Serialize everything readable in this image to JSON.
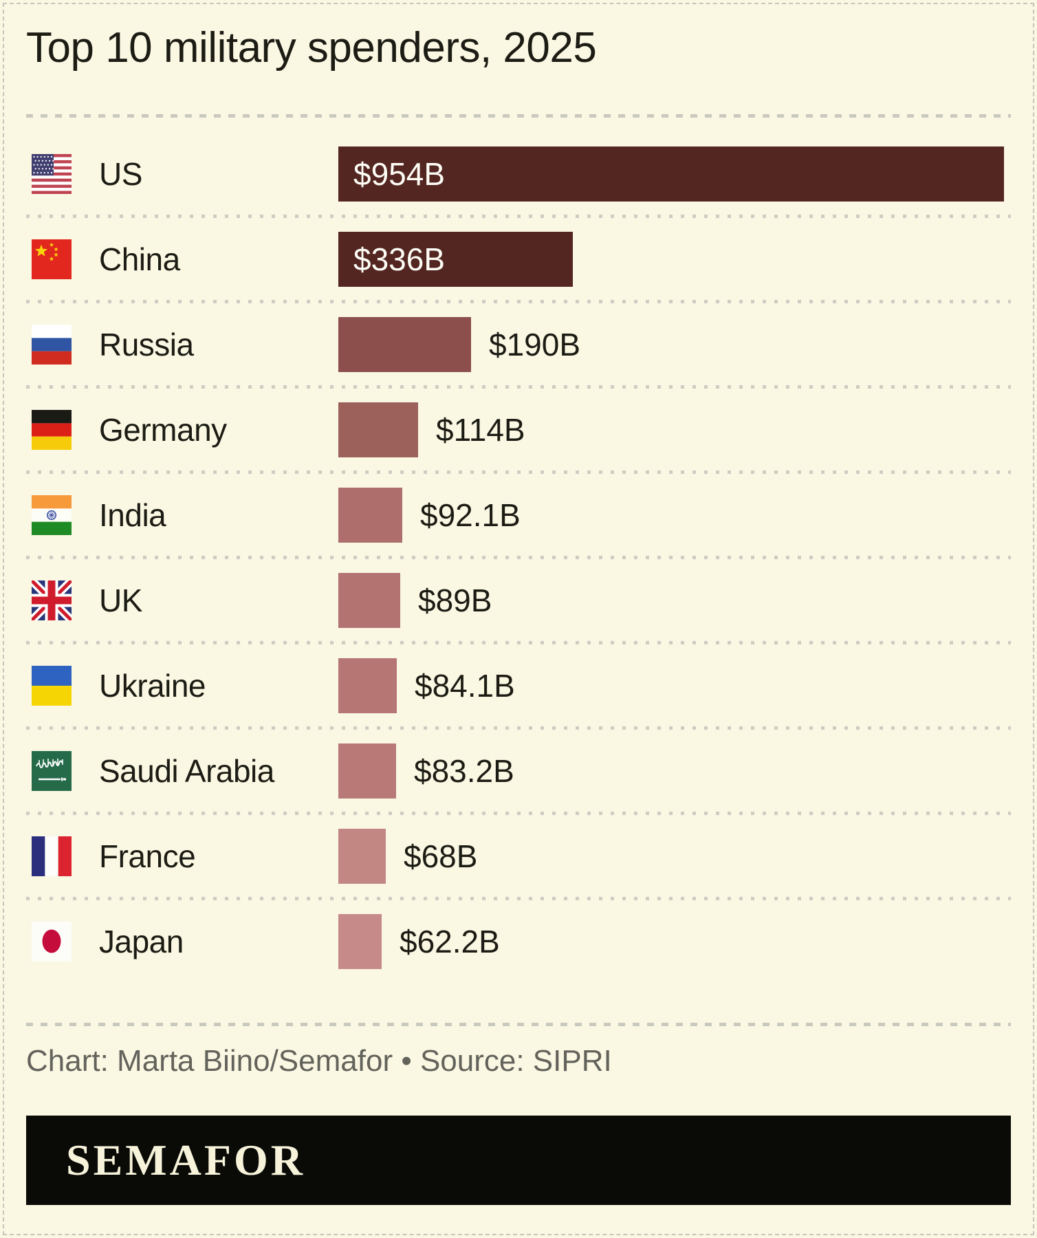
{
  "title": "Top 10 military spenders, 2025",
  "footer": {
    "credit_line": "Chart: Marta Biino/Semafor • Source: SIPRI",
    "logo_text": "SEMAFOR"
  },
  "colors": {
    "background": "#faf7e3",
    "text": "#1c1c14",
    "credit_text": "#63635b",
    "separator": "#cdcdc2",
    "logo_bar": "#0a0a07",
    "logo_text_color": "#f7f3da",
    "value_inside_text": "#fdfdf6",
    "bar_dark": "#542621",
    "bar_light": "#c68b88"
  },
  "rows": [
    {
      "country": "US",
      "flag": "us",
      "value": 954,
      "value_label": "$954B",
      "bar_color": "#542621",
      "label_inside": true
    },
    {
      "country": "China",
      "flag": "china",
      "value": 336,
      "value_label": "$336B",
      "bar_color": "#542621",
      "label_inside": true
    },
    {
      "country": "Russia",
      "flag": "russia",
      "value": 190,
      "value_label": "$190B",
      "bar_color": "#8d4f4b",
      "label_inside": false
    },
    {
      "country": "Germany",
      "flag": "germany",
      "value": 114,
      "value_label": "$114B",
      "bar_color": "#9d615c",
      "label_inside": false
    },
    {
      "country": "India",
      "flag": "india",
      "value": 92.1,
      "value_label": "$92.1B",
      "bar_color": "#ae6f6c",
      "label_inside": false
    },
    {
      "country": "UK",
      "flag": "uk",
      "value": 89,
      "value_label": "$89B",
      "bar_color": "#b27371",
      "label_inside": false
    },
    {
      "country": "Ukraine",
      "flag": "ukraine",
      "value": 84.1,
      "value_label": "$84.1B",
      "bar_color": "#b67774",
      "label_inside": false
    },
    {
      "country": "Saudi Arabia",
      "flag": "saudi",
      "value": 83.2,
      "value_label": "$83.2B",
      "bar_color": "#b97a77",
      "label_inside": false
    },
    {
      "country": "France",
      "flag": "france",
      "value": 68,
      "value_label": "$68B",
      "bar_color": "#c28683",
      "label_inside": false
    },
    {
      "country": "Japan",
      "flag": "japan",
      "value": 62.2,
      "value_label": "$62.2B",
      "bar_color": "#c68b88",
      "label_inside": false
    }
  ],
  "chart_data": {
    "type": "bar",
    "orientation": "horizontal",
    "title": "Top 10 military spenders, 2025",
    "unit": "USD billions",
    "categories": [
      "US",
      "China",
      "Russia",
      "Germany",
      "India",
      "UK",
      "Ukraine",
      "Saudi Arabia",
      "France",
      "Japan"
    ],
    "values": [
      954,
      336,
      190,
      114,
      92.1,
      89,
      84.1,
      83.2,
      68,
      62.2
    ],
    "value_labels": [
      "$954B",
      "$336B",
      "$190B",
      "$114B",
      "$92.1B",
      "$89B",
      "$84.1B",
      "$83.2B",
      "$68B",
      "$62.2B"
    ],
    "xlim": [
      0,
      954
    ],
    "grid": false,
    "legend": false,
    "source": "SIPRI",
    "credit": "Chart: Marta Biino/Semafor"
  }
}
